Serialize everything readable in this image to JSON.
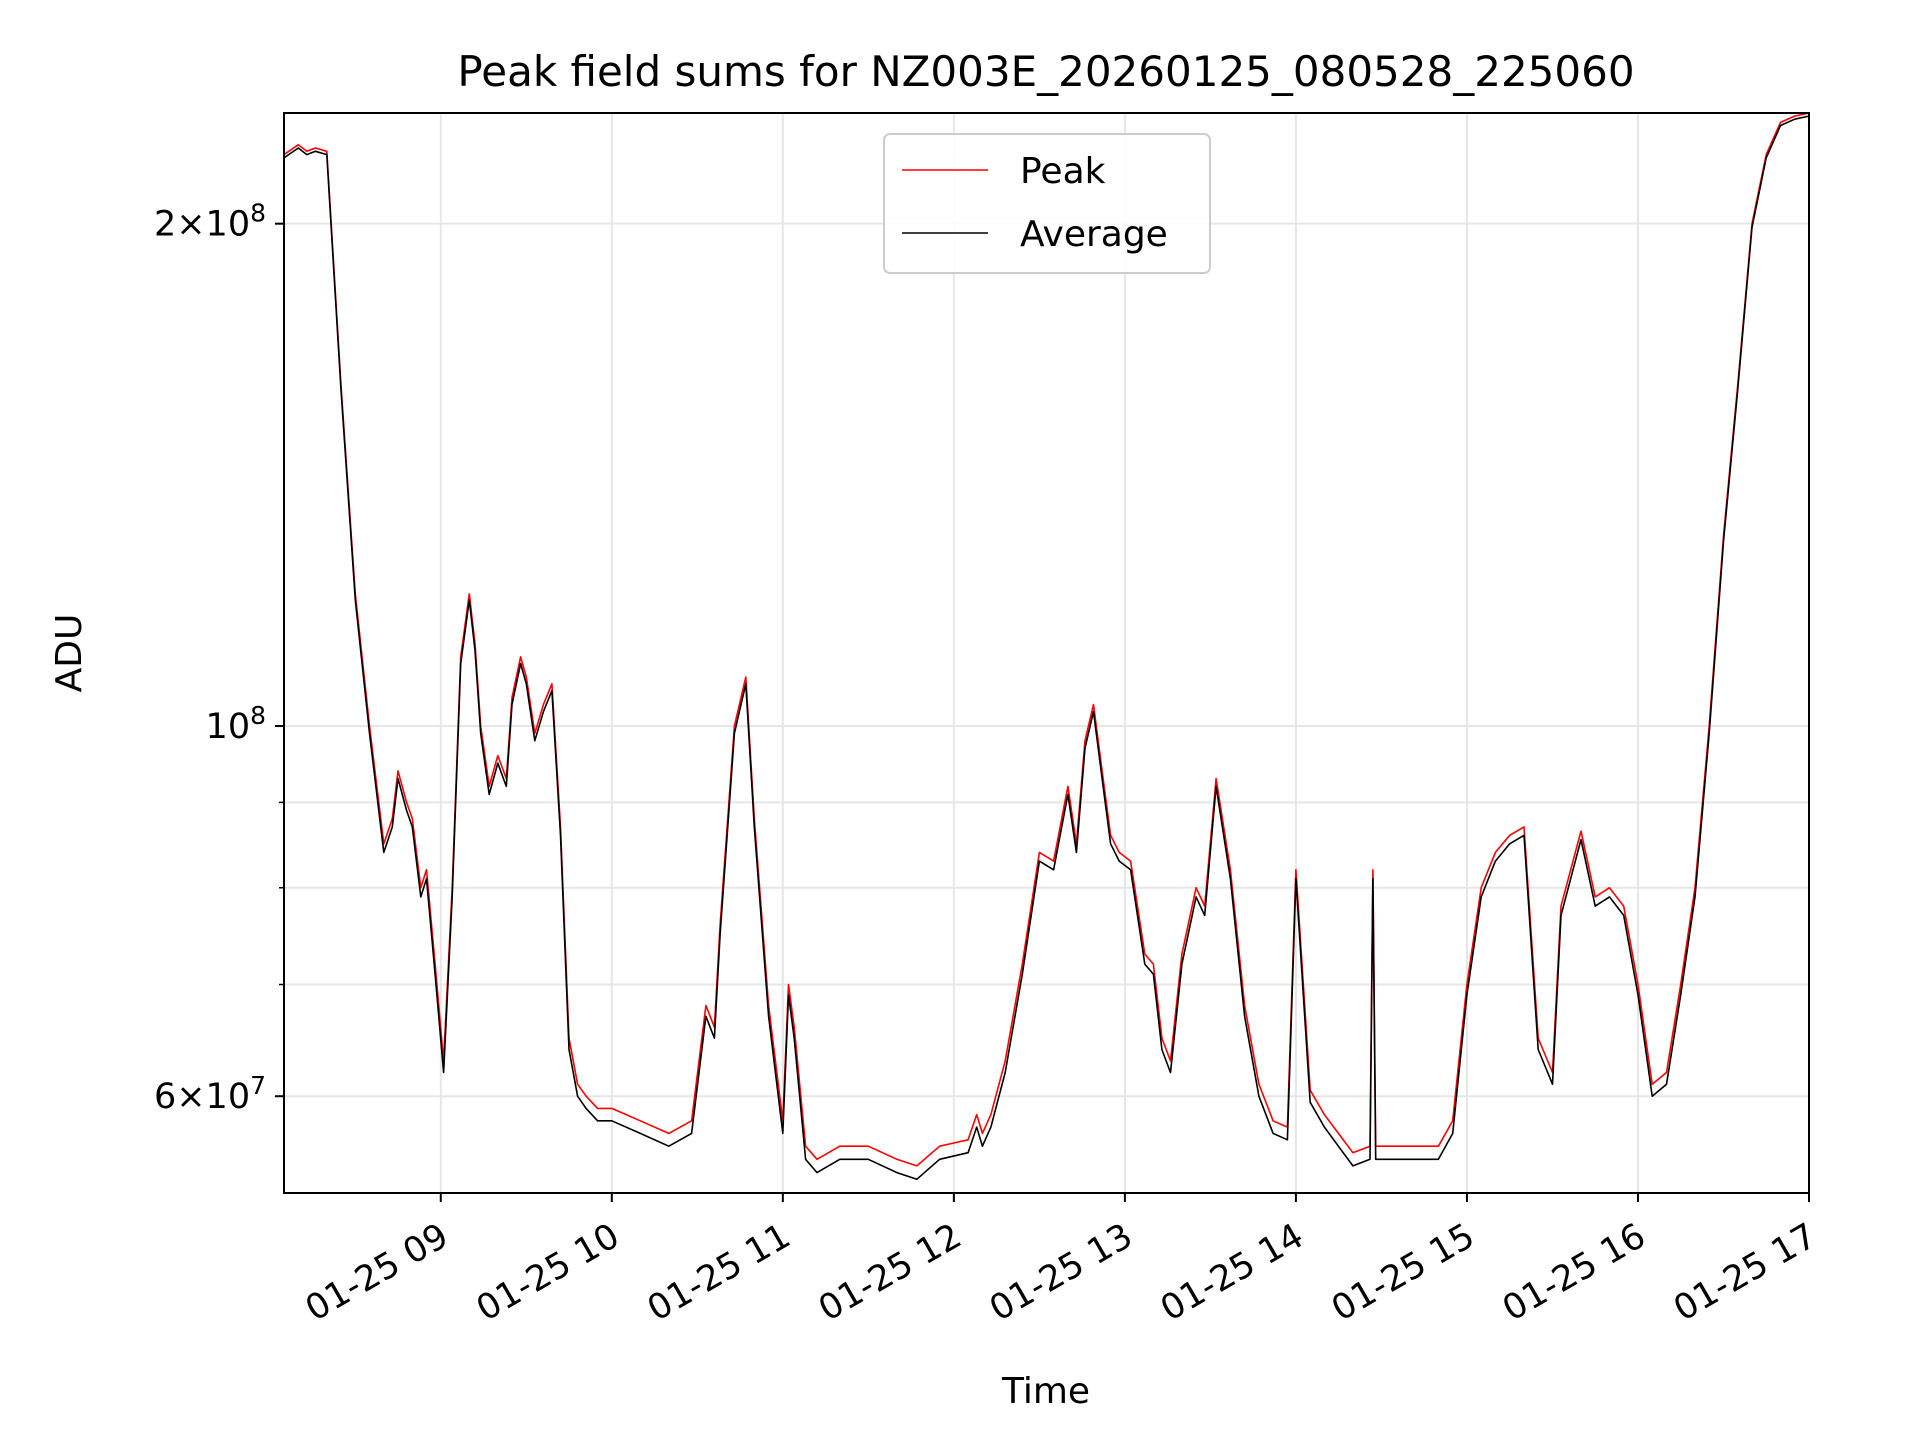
{
  "chart_data": {
    "type": "line",
    "title": "Peak field sums for NZ003E_20260125_080528_225060",
    "xlabel": "Time",
    "ylabel": "ADU",
    "yscale": "log",
    "grid": true,
    "legend_position": "upper-center",
    "xlim": [
      "2026-01-25 08:05",
      "2026-01-25 17:00"
    ],
    "ylim": [
      52500000,
      233000000
    ],
    "x_ticks": [
      {
        "value": "2026-01-25 09:00",
        "label": "01-25 09"
      },
      {
        "value": "2026-01-25 10:00",
        "label": "01-25 10"
      },
      {
        "value": "2026-01-25 11:00",
        "label": "01-25 11"
      },
      {
        "value": "2026-01-25 12:00",
        "label": "01-25 12"
      },
      {
        "value": "2026-01-25 13:00",
        "label": "01-25 13"
      },
      {
        "value": "2026-01-25 14:00",
        "label": "01-25 14"
      },
      {
        "value": "2026-01-25 15:00",
        "label": "01-25 15"
      },
      {
        "value": "2026-01-25 16:00",
        "label": "01-25 16"
      },
      {
        "value": "2026-01-25 17:00",
        "label": "01-25 17"
      }
    ],
    "y_major_ticks": [
      {
        "value": 60000000,
        "mantissa": "6",
        "base": "10",
        "exp": "7"
      },
      {
        "value": 100000000,
        "mantissa": "",
        "base": "10",
        "exp": "8"
      },
      {
        "value": 200000000,
        "mantissa": "2",
        "base": "10",
        "exp": "8"
      }
    ],
    "y_minor_ticks": [
      70000000,
      80000000,
      90000000
    ],
    "series": [
      {
        "name": "Peak",
        "color": "#ff0000",
        "x": [
          "2026-01-25 08:05",
          "2026-01-25 08:10",
          "2026-01-25 08:13",
          "2026-01-25 08:16",
          "2026-01-25 08:20",
          "2026-01-25 08:25",
          "2026-01-25 08:30",
          "2026-01-25 08:35",
          "2026-01-25 08:40",
          "2026-01-25 08:43",
          "2026-01-25 08:45",
          "2026-01-25 08:48",
          "2026-01-25 08:50",
          "2026-01-25 08:53",
          "2026-01-25 08:55",
          "2026-01-25 08:58",
          "2026-01-25 09:01",
          "2026-01-25 09:04",
          "2026-01-25 09:07",
          "2026-01-25 09:10",
          "2026-01-25 09:12",
          "2026-01-25 09:14",
          "2026-01-25 09:17",
          "2026-01-25 09:20",
          "2026-01-25 09:23",
          "2026-01-25 09:25",
          "2026-01-25 09:28",
          "2026-01-25 09:30",
          "2026-01-25 09:33",
          "2026-01-25 09:36",
          "2026-01-25 09:39",
          "2026-01-25 09:42",
          "2026-01-25 09:45",
          "2026-01-25 09:48",
          "2026-01-25 09:51",
          "2026-01-25 09:55",
          "2026-01-25 10:00",
          "2026-01-25 10:10",
          "2026-01-25 10:20",
          "2026-01-25 10:28",
          "2026-01-25 10:33",
          "2026-01-25 10:36",
          "2026-01-25 10:38",
          "2026-01-25 10:43",
          "2026-01-25 10:47",
          "2026-01-25 10:50",
          "2026-01-25 10:55",
          "2026-01-25 11:00",
          "2026-01-25 11:02",
          "2026-01-25 11:04",
          "2026-01-25 11:08",
          "2026-01-25 11:12",
          "2026-01-25 11:20",
          "2026-01-25 11:30",
          "2026-01-25 11:40",
          "2026-01-25 11:47",
          "2026-01-25 11:55",
          "2026-01-25 12:05",
          "2026-01-25 12:08",
          "2026-01-25 12:10",
          "2026-01-25 12:13",
          "2026-01-25 12:18",
          "2026-01-25 12:24",
          "2026-01-25 12:30",
          "2026-01-25 12:35",
          "2026-01-25 12:40",
          "2026-01-25 12:43",
          "2026-01-25 12:46",
          "2026-01-25 12:49",
          "2026-01-25 12:52",
          "2026-01-25 12:55",
          "2026-01-25 12:58",
          "2026-01-25 13:02",
          "2026-01-25 13:07",
          "2026-01-25 13:10",
          "2026-01-25 13:13",
          "2026-01-25 13:16",
          "2026-01-25 13:20",
          "2026-01-25 13:25",
          "2026-01-25 13:28",
          "2026-01-25 13:32",
          "2026-01-25 13:37",
          "2026-01-25 13:42",
          "2026-01-25 13:47",
          "2026-01-25 13:52",
          "2026-01-25 13:57",
          "2026-01-25 14:00",
          "2026-01-25 14:05",
          "2026-01-25 14:10",
          "2026-01-25 14:20",
          "2026-01-25 14:26",
          "2026-01-25 14:27",
          "2026-01-25 14:28",
          "2026-01-25 14:29",
          "2026-01-25 14:35",
          "2026-01-25 14:45",
          "2026-01-25 14:50",
          "2026-01-25 14:55",
          "2026-01-25 15:00",
          "2026-01-25 15:05",
          "2026-01-25 15:10",
          "2026-01-25 15:15",
          "2026-01-25 15:20",
          "2026-01-25 15:25",
          "2026-01-25 15:30",
          "2026-01-25 15:33",
          "2026-01-25 15:40",
          "2026-01-25 15:45",
          "2026-01-25 15:50",
          "2026-01-25 15:55",
          "2026-01-25 16:00",
          "2026-01-25 16:05",
          "2026-01-25 16:10",
          "2026-01-25 16:15",
          "2026-01-25 16:20",
          "2026-01-25 16:25",
          "2026-01-25 16:30",
          "2026-01-25 16:35",
          "2026-01-25 16:40",
          "2026-01-25 16:45",
          "2026-01-25 16:50",
          "2026-01-25 16:55",
          "2026-01-25 17:00"
        ],
        "values": [
          220000000,
          223000000,
          221000000,
          222000000,
          221000000,
          160000000,
          120000000,
          100000000,
          85000000,
          88000000,
          94000000,
          90000000,
          88000000,
          80000000,
          82000000,
          72000000,
          63000000,
          80000000,
          110000000,
          120000000,
          112000000,
          100000000,
          92000000,
          96000000,
          93000000,
          104000000,
          110000000,
          107000000,
          99000000,
          103000000,
          106000000,
          87000000,
          65000000,
          61000000,
          60000000,
          59000000,
          59000000,
          58000000,
          57000000,
          58000000,
          68000000,
          66000000,
          76000000,
          100000000,
          107000000,
          88000000,
          68000000,
          58000000,
          70000000,
          66000000,
          56000000,
          55000000,
          56000000,
          56000000,
          55000000,
          54500000,
          56000000,
          56500000,
          58500000,
          57000000,
          58500000,
          63000000,
          72000000,
          84000000,
          83000000,
          92000000,
          85000000,
          98000000,
          103000000,
          94000000,
          86000000,
          84000000,
          83000000,
          73000000,
          72000000,
          65000000,
          63000000,
          73000000,
          80000000,
          78000000,
          93000000,
          82000000,
          68000000,
          61000000,
          58000000,
          57500000,
          82000000,
          60500000,
          58500000,
          55500000,
          56000000,
          82000000,
          56000000,
          56000000,
          56000000,
          56000000,
          56000000,
          58000000,
          70000000,
          80000000,
          84000000,
          86000000,
          87000000,
          65000000,
          62000000,
          78000000,
          86500000,
          79000000,
          80000000,
          78000000,
          70000000,
          61000000,
          62000000,
          70000000,
          80000000,
          100000000,
          130000000,
          160000000,
          200000000,
          220000000,
          230000000,
          232000000,
          233000000
        ]
      },
      {
        "name": "Average",
        "color": "#000000",
        "x": [
          "2026-01-25 08:05",
          "2026-01-25 08:10",
          "2026-01-25 08:13",
          "2026-01-25 08:16",
          "2026-01-25 08:20",
          "2026-01-25 08:25",
          "2026-01-25 08:30",
          "2026-01-25 08:35",
          "2026-01-25 08:40",
          "2026-01-25 08:43",
          "2026-01-25 08:45",
          "2026-01-25 08:48",
          "2026-01-25 08:50",
          "2026-01-25 08:53",
          "2026-01-25 08:55",
          "2026-01-25 08:58",
          "2026-01-25 09:01",
          "2026-01-25 09:04",
          "2026-01-25 09:07",
          "2026-01-25 09:10",
          "2026-01-25 09:12",
          "2026-01-25 09:14",
          "2026-01-25 09:17",
          "2026-01-25 09:20",
          "2026-01-25 09:23",
          "2026-01-25 09:25",
          "2026-01-25 09:28",
          "2026-01-25 09:30",
          "2026-01-25 09:33",
          "2026-01-25 09:36",
          "2026-01-25 09:39",
          "2026-01-25 09:42",
          "2026-01-25 09:45",
          "2026-01-25 09:48",
          "2026-01-25 09:51",
          "2026-01-25 09:55",
          "2026-01-25 10:00",
          "2026-01-25 10:10",
          "2026-01-25 10:20",
          "2026-01-25 10:28",
          "2026-01-25 10:33",
          "2026-01-25 10:36",
          "2026-01-25 10:38",
          "2026-01-25 10:43",
          "2026-01-25 10:47",
          "2026-01-25 10:50",
          "2026-01-25 10:55",
          "2026-01-25 11:00",
          "2026-01-25 11:02",
          "2026-01-25 11:04",
          "2026-01-25 11:08",
          "2026-01-25 11:12",
          "2026-01-25 11:20",
          "2026-01-25 11:30",
          "2026-01-25 11:40",
          "2026-01-25 11:47",
          "2026-01-25 11:55",
          "2026-01-25 12:05",
          "2026-01-25 12:08",
          "2026-01-25 12:10",
          "2026-01-25 12:13",
          "2026-01-25 12:18",
          "2026-01-25 12:24",
          "2026-01-25 12:30",
          "2026-01-25 12:35",
          "2026-01-25 12:40",
          "2026-01-25 12:43",
          "2026-01-25 12:46",
          "2026-01-25 12:49",
          "2026-01-25 12:52",
          "2026-01-25 12:55",
          "2026-01-25 12:58",
          "2026-01-25 13:02",
          "2026-01-25 13:07",
          "2026-01-25 13:10",
          "2026-01-25 13:13",
          "2026-01-25 13:16",
          "2026-01-25 13:20",
          "2026-01-25 13:25",
          "2026-01-25 13:28",
          "2026-01-25 13:32",
          "2026-01-25 13:37",
          "2026-01-25 13:42",
          "2026-01-25 13:47",
          "2026-01-25 13:52",
          "2026-01-25 13:57",
          "2026-01-25 14:00",
          "2026-01-25 14:05",
          "2026-01-25 14:10",
          "2026-01-25 14:20",
          "2026-01-25 14:26",
          "2026-01-25 14:27",
          "2026-01-25 14:28",
          "2026-01-25 14:29",
          "2026-01-25 14:35",
          "2026-01-25 14:45",
          "2026-01-25 14:50",
          "2026-01-25 14:55",
          "2026-01-25 15:00",
          "2026-01-25 15:05",
          "2026-01-25 15:10",
          "2026-01-25 15:15",
          "2026-01-25 15:20",
          "2026-01-25 15:25",
          "2026-01-25 15:30",
          "2026-01-25 15:33",
          "2026-01-25 15:40",
          "2026-01-25 15:45",
          "2026-01-25 15:50",
          "2026-01-25 15:55",
          "2026-01-25 16:00",
          "2026-01-25 16:05",
          "2026-01-25 16:10",
          "2026-01-25 16:15",
          "2026-01-25 16:20",
          "2026-01-25 16:25",
          "2026-01-25 16:30",
          "2026-01-25 16:35",
          "2026-01-25 16:40",
          "2026-01-25 16:45",
          "2026-01-25 16:50",
          "2026-01-25 16:55",
          "2026-01-25 17:00"
        ],
        "values": [
          219000000,
          222000000,
          220000000,
          221000000,
          220000000,
          159000000,
          119000000,
          99000000,
          84000000,
          87000000,
          93000000,
          89000000,
          87000000,
          79000000,
          81000000,
          71000000,
          62000000,
          79000000,
          109000000,
          119000000,
          111000000,
          99000000,
          91000000,
          95000000,
          92000000,
          103000000,
          109000000,
          106000000,
          98000000,
          102000000,
          105000000,
          86000000,
          64000000,
          60000000,
          59000000,
          58000000,
          58000000,
          57000000,
          56000000,
          57000000,
          67000000,
          65000000,
          75000000,
          99000000,
          106000000,
          87000000,
          67000000,
          57000000,
          69000000,
          65000000,
          55000000,
          54000000,
          55000000,
          55000000,
          54000000,
          53500000,
          55000000,
          55500000,
          57500000,
          56000000,
          57500000,
          62000000,
          71000000,
          83000000,
          82000000,
          91000000,
          84000000,
          97000000,
          102000000,
          93000000,
          85000000,
          83000000,
          82000000,
          72000000,
          71000000,
          64000000,
          62000000,
          72000000,
          79000000,
          77000000,
          92000000,
          81000000,
          67000000,
          60000000,
          57000000,
          56500000,
          81000000,
          59500000,
          57500000,
          54500000,
          55000000,
          81000000,
          55000000,
          55000000,
          55000000,
          55000000,
          55000000,
          57000000,
          69000000,
          79000000,
          83000000,
          85000000,
          86000000,
          64000000,
          61000000,
          77000000,
          85500000,
          78000000,
          79000000,
          77000000,
          69000000,
          60000000,
          61000000,
          69000000,
          79000000,
          99000000,
          129000000,
          159000000,
          199000000,
          219000000,
          229000000,
          231000000,
          232000000
        ]
      }
    ]
  }
}
